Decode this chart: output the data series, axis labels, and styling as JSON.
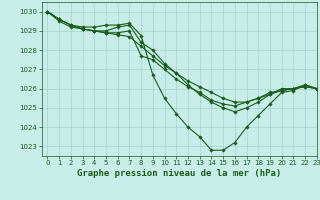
{
  "title": "Graphe pression niveau de la mer (hPa)",
  "xlim": [
    -0.5,
    23
  ],
  "ylim": [
    1022.5,
    1030.5
  ],
  "yticks": [
    1023,
    1024,
    1025,
    1026,
    1027,
    1028,
    1029,
    1030
  ],
  "xticks": [
    0,
    1,
    2,
    3,
    4,
    5,
    6,
    7,
    8,
    9,
    10,
    11,
    12,
    13,
    14,
    15,
    16,
    17,
    18,
    19,
    20,
    21,
    22,
    23
  ],
  "background_color": "#c8ede8",
  "grid_color": "#99ccc8",
  "line_color": "#1a5c1a",
  "lines": [
    [
      1030.0,
      1029.6,
      1029.3,
      1029.2,
      1029.2,
      1029.3,
      1029.3,
      1029.4,
      1028.75,
      1026.7,
      1025.5,
      1024.7,
      1024.0,
      1023.5,
      1022.8,
      1022.8,
      1023.2,
      1024.0,
      1024.6,
      1025.2,
      1025.8,
      1025.9,
      1026.2,
      1026.0
    ],
    [
      1030.0,
      1029.6,
      1029.3,
      1029.1,
      1029.0,
      1029.0,
      1029.2,
      1029.3,
      1028.4,
      1028.0,
      1027.3,
      1026.8,
      1026.2,
      1025.7,
      1025.3,
      1025.0,
      1024.8,
      1025.0,
      1025.3,
      1025.7,
      1026.0,
      1026.0,
      1026.2,
      1026.0
    ],
    [
      1030.0,
      1029.5,
      1029.2,
      1029.1,
      1029.0,
      1028.9,
      1028.8,
      1028.7,
      1028.2,
      1027.7,
      1027.2,
      1026.8,
      1026.4,
      1026.1,
      1025.8,
      1025.5,
      1025.3,
      1025.3,
      1025.5,
      1025.7,
      1025.9,
      1026.0,
      1026.1,
      1026.0
    ],
    [
      1030.0,
      1029.6,
      1029.3,
      1029.1,
      1029.0,
      1028.9,
      1028.9,
      1029.0,
      1027.7,
      1027.5,
      1027.0,
      1026.5,
      1026.1,
      1025.8,
      1025.4,
      1025.2,
      1025.1,
      1025.3,
      1025.5,
      1025.8,
      1025.9,
      1026.0,
      1026.1,
      1026.0
    ]
  ],
  "title_fontsize": 6.5,
  "tick_fontsize": 5,
  "marker": "D",
  "markersize": 1.8,
  "linewidth": 0.8
}
